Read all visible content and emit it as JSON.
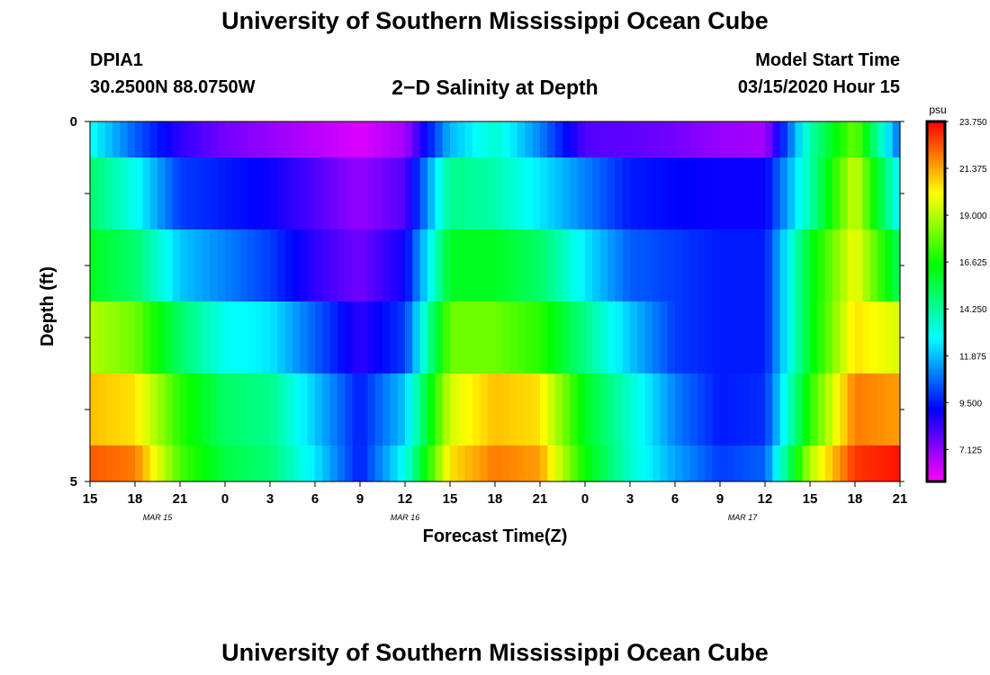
{
  "header": {
    "title": "University of Southern Mississippi Ocean Cube",
    "station": "DPIA1",
    "coords": "30.2500N 88.0750W",
    "subtitle": "2−D Salinity at Depth",
    "model_label": "Model Start Time",
    "model_time": "03/15/2020 Hour 15"
  },
  "footer": {
    "title": "University of Southern Mississippi Ocean Cube"
  },
  "chart_data": {
    "type": "heatmap",
    "title": "2−D Salinity at Depth",
    "xlabel": "Forecast Time(Z)",
    "ylabel": "Depth (ft)",
    "x_ticks": [
      "15",
      "18",
      "21",
      "0",
      "3",
      "6",
      "9",
      "12",
      "15",
      "18",
      "21",
      "0",
      "3",
      "6",
      "9",
      "12",
      "15",
      "18",
      "21"
    ],
    "date_labels": [
      {
        "label": "MAR 15",
        "at_tick": 1.5
      },
      {
        "label": "MAR 16",
        "at_tick": 7
      },
      {
        "label": "MAR 17",
        "at_tick": 14.5
      }
    ],
    "y_ticks": [
      "0",
      "5"
    ],
    "ylim": [
      0,
      5
    ],
    "colorbar": {
      "unit": "psu",
      "ticks": [
        "23.750",
        "21.375",
        "19.000",
        "16.625",
        "14.250",
        "11.875",
        "9.500",
        "7.125"
      ],
      "vmin": 5.5,
      "vmax": 23.75,
      "colors": [
        "#ff00ff",
        "#8000ff",
        "#0000ff",
        "#0080ff",
        "#00ffff",
        "#00ff80",
        "#00ff00",
        "#80ff00",
        "#ffff00",
        "#ff8000",
        "#ff0000"
      ]
    },
    "x_hours": [
      0,
      3,
      6,
      9,
      12,
      15,
      18,
      21,
      24,
      27,
      30,
      33,
      36,
      39,
      42,
      45,
      48,
      51,
      54
    ],
    "rows": [
      {
        "depth_band": [
          0.0,
          0.5
        ],
        "values": [
          13.0,
          10.5,
          8.5,
          7.5,
          7.0,
          6.5,
          6.0,
          6.8,
          11.8,
          13.5,
          11.0,
          8.0,
          7.8,
          7.5,
          7.0,
          6.8,
          14.0,
          18.0,
          10.5
        ]
      },
      {
        "depth_band": [
          0.5,
          1.5
        ],
        "values": [
          15.0,
          13.0,
          10.0,
          9.5,
          9.0,
          8.0,
          7.0,
          8.0,
          14.5,
          14.0,
          12.5,
          11.0,
          9.5,
          9.2,
          9.0,
          9.0,
          14.0,
          19.5,
          12.5
        ]
      },
      {
        "depth_band": [
          1.5,
          2.5
        ],
        "values": [
          16.0,
          15.0,
          12.0,
          11.0,
          10.0,
          8.5,
          7.5,
          9.0,
          16.0,
          16.0,
          15.0,
          12.5,
          10.5,
          10.0,
          9.5,
          9.5,
          16.0,
          20.0,
          15.0
        ]
      },
      {
        "depth_band": [
          2.5,
          3.5
        ],
        "values": [
          19.0,
          18.0,
          15.0,
          13.0,
          12.5,
          10.5,
          8.5,
          10.0,
          18.0,
          18.0,
          17.0,
          14.5,
          12.0,
          10.0,
          9.5,
          9.5,
          16.0,
          20.5,
          19.5
        ]
      },
      {
        "depth_band": [
          3.5,
          4.5
        ],
        "values": [
          21.0,
          20.5,
          17.0,
          15.0,
          14.5,
          12.0,
          9.5,
          12.0,
          19.5,
          21.0,
          20.5,
          16.0,
          13.5,
          11.0,
          9.5,
          9.8,
          17.0,
          22.0,
          21.5
        ]
      },
      {
        "depth_band": [
          4.5,
          5.0
        ],
        "values": [
          22.5,
          22.0,
          17.5,
          15.5,
          14.8,
          12.5,
          9.5,
          13.0,
          20.5,
          22.0,
          21.5,
          16.5,
          13.5,
          11.5,
          10.0,
          10.5,
          19.0,
          23.0,
          23.5
        ]
      }
    ]
  }
}
